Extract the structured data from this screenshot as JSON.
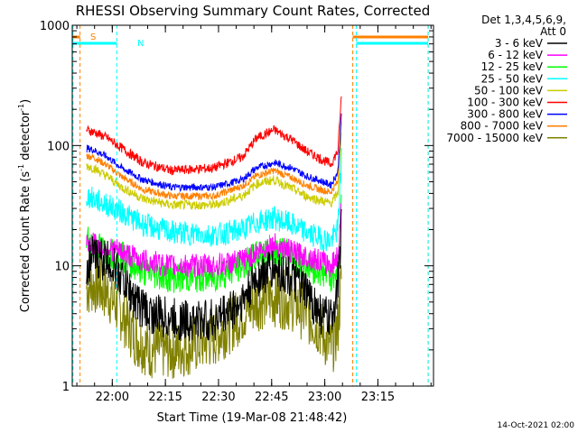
{
  "chart_data": {
    "type": "line",
    "title": "RHESSI Observing Summary Count Rates, Corrected",
    "xlabel": "Start Time (19-Mar-08 21:48:42)",
    "ylabel_main": "Corrected Count Rate (s",
    "ylabel_sup1": "-1",
    "ylabel_mid": " detector",
    "ylabel_sup2": "-1",
    "ylabel_end": ")",
    "y_scale": "log",
    "ylim": [
      1,
      1000
    ],
    "xlim_minutes": [
      0,
      102
    ],
    "x_ticks": [
      {
        "label": "22:00",
        "minute": 11.3
      },
      {
        "label": "22:15",
        "minute": 26.3
      },
      {
        "label": "22:30",
        "minute": 41.3
      },
      {
        "label": "22:45",
        "minute": 56.3
      },
      {
        "label": "23:00",
        "minute": 71.3
      },
      {
        "label": "23:15",
        "minute": 86.3
      }
    ],
    "y_ticks": [
      {
        "label": "1",
        "value": 1
      },
      {
        "label": "10",
        "value": 10
      },
      {
        "label": "100",
        "value": 100
      },
      {
        "label": "1000",
        "value": 1000
      }
    ],
    "legend_header": [
      "Det 1,3,4,5,6,9,",
      "Att 0"
    ],
    "legend_position": "right",
    "series": [
      {
        "name": "3 - 6 keV",
        "color": "#000000",
        "noise": 0.18,
        "points": [
          [
            4,
            10
          ],
          [
            6,
            12
          ],
          [
            10,
            11
          ],
          [
            14,
            8
          ],
          [
            18,
            5
          ],
          [
            22,
            4
          ],
          [
            30,
            3.5
          ],
          [
            40,
            3.5
          ],
          [
            48,
            5
          ],
          [
            52,
            8
          ],
          [
            57,
            9.5
          ],
          [
            62,
            8
          ],
          [
            66,
            6
          ],
          [
            70,
            4
          ],
          [
            73,
            3.5
          ],
          [
            75,
            7
          ],
          [
            76,
            20
          ]
        ]
      },
      {
        "name": "6 - 12 keV",
        "color": "#ff00ff",
        "noise": 0.1,
        "points": [
          [
            4,
            16
          ],
          [
            6,
            15
          ],
          [
            10,
            14
          ],
          [
            14,
            13
          ],
          [
            20,
            11
          ],
          [
            28,
            10
          ],
          [
            40,
            10
          ],
          [
            48,
            11
          ],
          [
            52,
            13
          ],
          [
            57,
            15
          ],
          [
            62,
            13
          ],
          [
            66,
            12
          ],
          [
            70,
            11
          ],
          [
            73,
            10
          ],
          [
            75,
            12
          ],
          [
            76,
            30
          ]
        ]
      },
      {
        "name": "12 - 25 keV",
        "color": "#00ff00",
        "noise": 0.13,
        "points": [
          [
            4,
            17
          ],
          [
            6,
            15
          ],
          [
            10,
            13
          ],
          [
            14,
            12
          ],
          [
            20,
            9
          ],
          [
            28,
            8
          ],
          [
            40,
            8
          ],
          [
            48,
            10
          ],
          [
            52,
            12
          ],
          [
            57,
            14
          ],
          [
            62,
            12
          ],
          [
            66,
            10
          ],
          [
            70,
            9
          ],
          [
            73,
            8
          ],
          [
            75,
            10
          ],
          [
            76,
            35
          ]
        ]
      },
      {
        "name": "25 - 50 keV",
        "color": "#00ffff",
        "noise": 0.1,
        "points": [
          [
            4,
            38
          ],
          [
            6,
            36
          ],
          [
            10,
            32
          ],
          [
            14,
            28
          ],
          [
            20,
            22
          ],
          [
            28,
            19
          ],
          [
            40,
            18
          ],
          [
            48,
            20
          ],
          [
            52,
            23
          ],
          [
            57,
            25
          ],
          [
            62,
            22
          ],
          [
            66,
            19
          ],
          [
            70,
            17
          ],
          [
            73,
            16
          ],
          [
            75,
            20
          ],
          [
            76,
            80
          ]
        ]
      },
      {
        "name": "50 - 100 keV",
        "color": "#cccc00",
        "noise": 0.04,
        "points": [
          [
            4,
            68
          ],
          [
            6,
            65
          ],
          [
            10,
            55
          ],
          [
            14,
            45
          ],
          [
            20,
            36
          ],
          [
            28,
            32
          ],
          [
            40,
            32
          ],
          [
            48,
            38
          ],
          [
            52,
            48
          ],
          [
            57,
            52
          ],
          [
            62,
            44
          ],
          [
            66,
            38
          ],
          [
            70,
            35
          ],
          [
            73,
            33
          ],
          [
            75,
            40
          ],
          [
            76,
            120
          ]
        ]
      },
      {
        "name": "100 - 300 keV",
        "color": "#ff0000",
        "noise": 0.04,
        "points": [
          [
            4,
            135
          ],
          [
            6,
            130
          ],
          [
            10,
            115
          ],
          [
            14,
            95
          ],
          [
            20,
            72
          ],
          [
            28,
            62
          ],
          [
            40,
            65
          ],
          [
            48,
            80
          ],
          [
            52,
            115
          ],
          [
            57,
            135
          ],
          [
            62,
            112
          ],
          [
            66,
            90
          ],
          [
            70,
            78
          ],
          [
            73,
            70
          ],
          [
            75,
            90
          ],
          [
            76,
            260
          ]
        ]
      },
      {
        "name": "300 - 800 keV",
        "color": "#0000ff",
        "noise": 0.03,
        "points": [
          [
            4,
            95
          ],
          [
            6,
            92
          ],
          [
            10,
            80
          ],
          [
            14,
            65
          ],
          [
            20,
            52
          ],
          [
            28,
            45
          ],
          [
            40,
            45
          ],
          [
            48,
            52
          ],
          [
            52,
            65
          ],
          [
            57,
            72
          ],
          [
            62,
            65
          ],
          [
            66,
            56
          ],
          [
            70,
            51
          ],
          [
            73,
            47
          ],
          [
            75,
            60
          ],
          [
            76,
            180
          ]
        ]
      },
      {
        "name": "800 - 7000 keV",
        "color": "#ff8000",
        "noise": 0.03,
        "points": [
          [
            4,
            82
          ],
          [
            6,
            80
          ],
          [
            10,
            68
          ],
          [
            14,
            55
          ],
          [
            20,
            43
          ],
          [
            28,
            38
          ],
          [
            40,
            38
          ],
          [
            48,
            46
          ],
          [
            52,
            56
          ],
          [
            57,
            62
          ],
          [
            62,
            54
          ],
          [
            66,
            47
          ],
          [
            70,
            43
          ],
          [
            73,
            41
          ],
          [
            75,
            50
          ],
          [
            76,
            150
          ]
        ]
      },
      {
        "name": "7000 - 15000 keV",
        "color": "#808000",
        "noise": 0.25,
        "points": [
          [
            4,
            6.5
          ],
          [
            6,
            7
          ],
          [
            10,
            6
          ],
          [
            14,
            4
          ],
          [
            18,
            2.5
          ],
          [
            22,
            2
          ],
          [
            30,
            2
          ],
          [
            40,
            2.5
          ],
          [
            48,
            4
          ],
          [
            52,
            5
          ],
          [
            57,
            5.5
          ],
          [
            62,
            5
          ],
          [
            66,
            4
          ],
          [
            70,
            3
          ],
          [
            73,
            2
          ],
          [
            75,
            3
          ],
          [
            76,
            8
          ]
        ]
      }
    ],
    "annotations": {
      "saa_label": "S",
      "night_label": "N",
      "saa_color": "#ff8000",
      "night_color": "#00ffff",
      "saa_bars": [
        [
          0,
          2.2
        ],
        [
          79.2,
          100.5
        ]
      ],
      "night_bars": [
        [
          0,
          12.6
        ],
        [
          80.2,
          100.5
        ]
      ],
      "saa_lines": [
        2.2,
        79.2,
        100.5
      ],
      "night_lines": [
        0.2,
        12.6,
        80.2,
        100.5
      ]
    },
    "footer_date": "14-Oct-2021 02:00"
  }
}
